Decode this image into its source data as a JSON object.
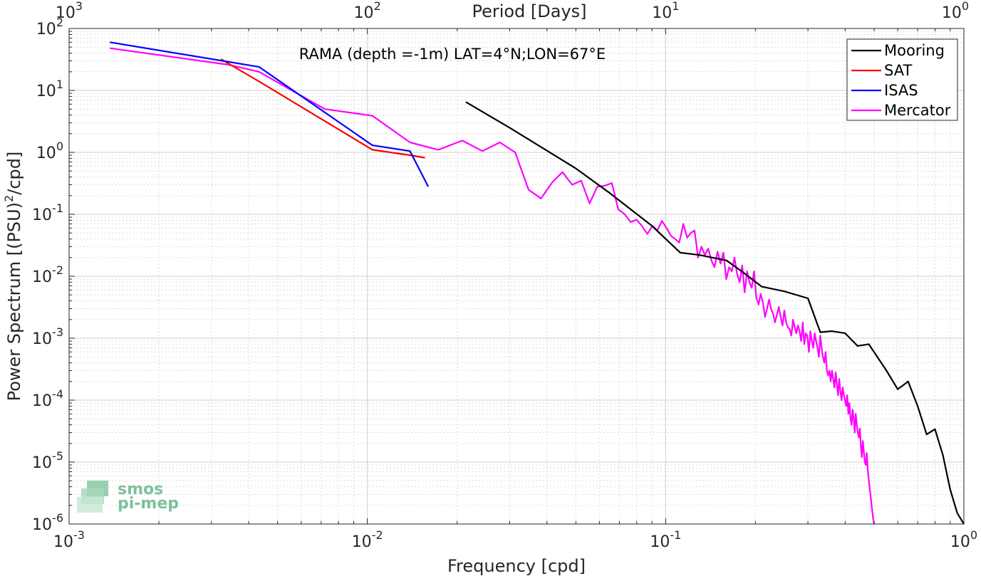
{
  "chart_data": {
    "type": "line",
    "title": "",
    "annotation": "RAMA (depth =-1m) LAT=4°N;LON=67°E",
    "xlabel": "Frequency [cpd]",
    "ylabel_main": "Power Spectrum [(PSU)",
    "ylabel_sup": "2",
    "ylabel_tail": "/cpd]",
    "top_xlabel": "Period [Days]",
    "x_scale": "log",
    "y_scale": "log",
    "xlim": [
      0.001,
      1
    ],
    "ylim": [
      1e-06,
      100
    ],
    "grid": true,
    "legend_position": "top-right",
    "x_ticks": [
      {
        "value": 0.001,
        "base": "10",
        "exp": "-3"
      },
      {
        "value": 0.01,
        "base": "10",
        "exp": "-2"
      },
      {
        "value": 0.1,
        "base": "10",
        "exp": "-1"
      },
      {
        "value": 1,
        "base": "10",
        "exp": "0"
      }
    ],
    "y_ticks": [
      {
        "value": 1e-06,
        "base": "10",
        "exp": "-6"
      },
      {
        "value": 1e-05,
        "base": "10",
        "exp": "-5"
      },
      {
        "value": 0.0001,
        "base": "10",
        "exp": "-4"
      },
      {
        "value": 0.001,
        "base": "10",
        "exp": "-3"
      },
      {
        "value": 0.01,
        "base": "10",
        "exp": "-2"
      },
      {
        "value": 0.1,
        "base": "10",
        "exp": "-1"
      },
      {
        "value": 1,
        "base": "10",
        "exp": "0"
      },
      {
        "value": 10,
        "base": "10",
        "exp": "1"
      },
      {
        "value": 100,
        "base": "10",
        "exp": "2"
      }
    ],
    "top_ticks": [
      {
        "value": 0.001,
        "base": "10",
        "exp": "3"
      },
      {
        "value": 0.01,
        "base": "10",
        "exp": "2"
      },
      {
        "value": 0.1,
        "base": "10",
        "exp": "1"
      },
      {
        "value": 1,
        "base": "10",
        "exp": "0"
      }
    ],
    "series": [
      {
        "name": "Mooring",
        "color": "#000000",
        "x": [
          0.0214,
          0.03,
          0.05,
          0.065,
          0.09,
          0.112,
          0.13,
          0.16,
          0.18,
          0.21,
          0.25,
          0.3,
          0.33,
          0.36,
          0.4,
          0.44,
          0.48,
          0.55,
          0.6,
          0.65,
          0.7,
          0.75,
          0.8,
          0.85,
          0.9,
          0.95,
          1.0
        ],
        "y": [
          6.5,
          2.5,
          0.55,
          0.22,
          0.065,
          0.024,
          0.022,
          0.018,
          0.012,
          0.0068,
          0.0057,
          0.0044,
          0.00125,
          0.0013,
          0.0012,
          0.00075,
          0.0008,
          0.0003,
          0.00015,
          0.0002,
          8e-05,
          2.8e-05,
          3.4e-05,
          1.3e-05,
          3.6e-06,
          1.5e-06,
          1e-06
        ]
      },
      {
        "name": "SAT",
        "color": "#ff0000",
        "x": [
          0.00323,
          0.00433,
          0.0104,
          0.0139,
          0.0156
        ],
        "y": [
          32,
          14,
          1.1,
          0.9,
          0.82
        ]
      },
      {
        "name": "ISAS",
        "color": "#0000ff",
        "x": [
          0.00137,
          0.00433,
          0.0104,
          0.0139,
          0.016
        ],
        "y": [
          60,
          24,
          1.3,
          1.05,
          0.28
        ]
      },
      {
        "name": "Mercator",
        "color": "#ff00ff",
        "x": [
          0.00137,
          0.00342,
          0.00433,
          0.0072,
          0.0104,
          0.0139,
          0.0173,
          0.0208,
          0.0243,
          0.0278,
          0.0313,
          0.0347,
          0.0382,
          0.0417,
          0.0451,
          0.0486,
          0.0521,
          0.0556,
          0.059,
          0.0625,
          0.066,
          0.0694,
          0.0729,
          0.0764,
          0.0799,
          0.0833,
          0.0868,
          0.0903,
          0.0938,
          0.0972,
          0.1007,
          0.1042,
          0.1076,
          0.1111,
          0.1146,
          0.1181,
          0.1215,
          0.125,
          0.1285,
          0.1319,
          0.1354,
          0.1389,
          0.1424,
          0.1458,
          0.1493,
          0.1528,
          0.1562,
          0.1597,
          0.1632,
          0.1667,
          0.1701,
          0.1736,
          0.1771,
          0.1806,
          0.184,
          0.1875,
          0.191,
          0.1944,
          0.1979,
          0.2014,
          0.2049,
          0.2083,
          0.2118,
          0.2153,
          0.2188,
          0.2222,
          0.2257,
          0.2292,
          0.2326,
          0.2361,
          0.2396,
          0.2431,
          0.2465,
          0.25,
          0.2535,
          0.2569,
          0.2604,
          0.2639,
          0.2674,
          0.2708,
          0.2743,
          0.2778,
          0.2812,
          0.2847,
          0.2882,
          0.2917,
          0.2951,
          0.2986,
          0.3021,
          0.3056,
          0.309,
          0.3125,
          0.316,
          0.3194,
          0.3229,
          0.3264,
          0.3299,
          0.3333,
          0.3368,
          0.3403,
          0.3438,
          0.3472,
          0.3507,
          0.3542,
          0.3576,
          0.3611,
          0.3646,
          0.3681,
          0.3715,
          0.375,
          0.3785,
          0.3819,
          0.3854,
          0.3889,
          0.3924,
          0.3958,
          0.3993,
          0.4028,
          0.4062,
          0.4097,
          0.4132,
          0.4167,
          0.4201,
          0.4236,
          0.4271,
          0.4306,
          0.434,
          0.4375,
          0.441,
          0.4444,
          0.4479,
          0.4514,
          0.4549,
          0.4583,
          0.4618,
          0.4653,
          0.4688,
          0.4722,
          0.4757,
          0.4792,
          0.4826,
          0.4861,
          0.4896,
          0.4931,
          0.4965,
          0.5
        ],
        "y": [
          48,
          26,
          20,
          5.0,
          3.9,
          1.45,
          1.1,
          1.55,
          1.05,
          1.45,
          1.0,
          0.25,
          0.18,
          0.33,
          0.48,
          0.3,
          0.35,
          0.15,
          0.28,
          0.29,
          0.32,
          0.12,
          0.1,
          0.075,
          0.082,
          0.065,
          0.048,
          0.065,
          0.055,
          0.078,
          0.06,
          0.045,
          0.04,
          0.035,
          0.07,
          0.042,
          0.05,
          0.055,
          0.02,
          0.03,
          0.022,
          0.028,
          0.018,
          0.014,
          0.025,
          0.016,
          0.024,
          0.009,
          0.014,
          0.012,
          0.02,
          0.011,
          0.008,
          0.015,
          0.0055,
          0.012,
          0.008,
          0.0065,
          0.012,
          0.0045,
          0.0035,
          0.0052,
          0.0038,
          0.0022,
          0.003,
          0.0042,
          0.003,
          0.0025,
          0.0018,
          0.0024,
          0.0032,
          0.0022,
          0.0016,
          0.0028,
          0.0018,
          0.0015,
          0.0014,
          0.0011,
          0.002,
          0.0015,
          0.0012,
          0.0016,
          0.0013,
          0.0009,
          0.0018,
          0.0008,
          0.0012,
          0.0011,
          0.0006,
          0.0013,
          0.0009,
          0.0007,
          0.0012,
          0.0009,
          0.0007,
          0.0005,
          0.0011,
          0.0007,
          0.0005,
          0.0004,
          0.0006,
          0.0003,
          0.00025,
          0.0003,
          0.0002,
          0.0003,
          0.00022,
          0.00016,
          0.00028,
          0.00018,
          0.00012,
          0.00022,
          0.00014,
          0.0001,
          0.00016,
          0.00012,
          0.0001,
          8e-05,
          0.00012,
          6e-05,
          9e-05,
          5e-05,
          4e-05,
          7e-05,
          5e-05,
          3e-05,
          6e-05,
          4e-05,
          3e-05,
          2.5e-05,
          3.5e-05,
          1.8e-05,
          1.2e-05,
          2.2e-05,
          1.5e-05,
          1e-05,
          9e-06,
          1.4e-05,
          8e-06,
          5.5e-06,
          4e-06,
          3e-06,
          2.2e-06,
          1.6e-06,
          1.2e-06,
          1e-06
        ]
      }
    ]
  },
  "logo": {
    "line1": "smos",
    "line2": "pi-mep"
  }
}
